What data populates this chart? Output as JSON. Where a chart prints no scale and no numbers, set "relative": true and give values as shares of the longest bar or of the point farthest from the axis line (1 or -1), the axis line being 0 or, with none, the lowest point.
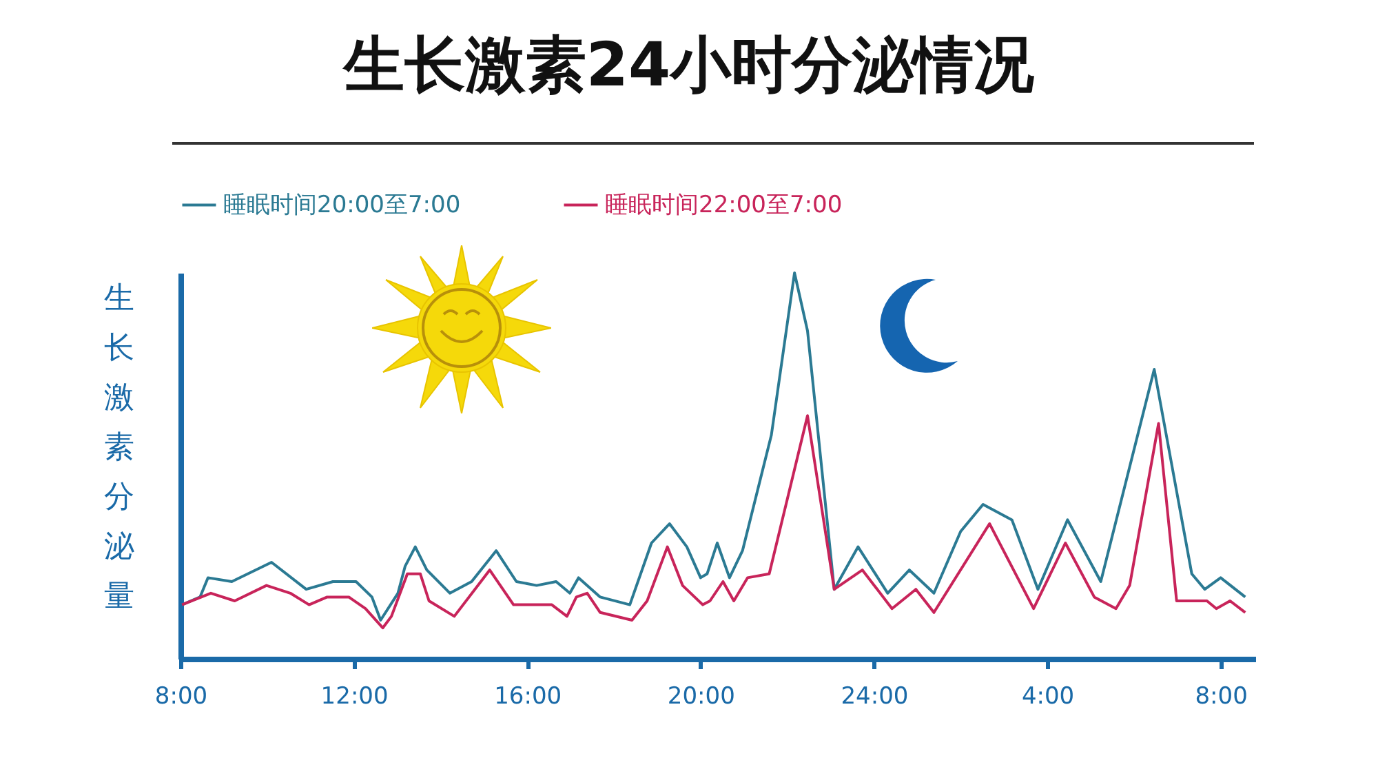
{
  "chart_data": {
    "type": "line",
    "title": "生长激素24小时分泌情况",
    "ylabel": "生长激素分泌量",
    "relative": true,
    "legend": "top",
    "grid": false,
    "marker": "none",
    "line_style": "solid",
    "xlim": [
      "--01-01T08:00",
      "--01-02T08:48"
    ],
    "xticks": [
      {
        "value": "--01-01T08:00",
        "label": "8:00"
      },
      {
        "value": "--01-01T12:00",
        "label": "12:00"
      },
      {
        "value": "--01-01T16:00",
        "label": "16:00"
      },
      {
        "value": "--01-01T20:00",
        "label": "20:00"
      },
      {
        "value": "--01-02T00:00",
        "label": "24:00"
      },
      {
        "value": "--01-02T04:00",
        "label": "4:00"
      },
      {
        "value": "--01-02T08:00",
        "label": "8:00"
      }
    ],
    "series": [
      {
        "name": "睡眠时间20:00至7:00",
        "color": "#2b7a93",
        "x": [
          "--01-01T08:02",
          "--01-01T08:27",
          "--01-01T08:38",
          "--01-01T09:11",
          "--01-01T10:06",
          "--01-01T10:54",
          "--01-01T11:31",
          "--01-01T12:03",
          "--01-01T12:25",
          "--01-01T12:37",
          "--01-01T13:01",
          "--01-01T13:11",
          "--01-01T13:25",
          "--01-01T13:41",
          "--01-01T14:13",
          "--01-01T14:43",
          "--01-01T15:17",
          "--01-01T15:45",
          "--01-01T16:13",
          "--01-01T16:40",
          "--01-01T16:59",
          "--01-01T17:11",
          "--01-01T17:41",
          "--01-01T18:22",
          "--01-01T18:52",
          "--01-01T19:17",
          "--01-01T19:41",
          "--01-01T20:00",
          "--01-01T20:09",
          "--01-01T20:23",
          "--01-01T20:40",
          "--01-01T20:58",
          "--01-01T21:38",
          "--01-01T22:10",
          "--01-01T22:28",
          "--01-01T23:05",
          "--01-01T23:38",
          "--01-02T00:19",
          "--01-02T00:49",
          "--01-02T01:23",
          "--01-02T02:00",
          "--01-02T02:31",
          "--01-02T03:11",
          "--01-02T03:47",
          "--01-02T04:28",
          "--01-02T05:14",
          "--01-02T06:28",
          "--01-02T07:20",
          "--01-02T07:38",
          "--01-02T08:00",
          "--01-02T08:34"
        ],
        "values": [
          0.14,
          0.16,
          0.21,
          0.2,
          0.25,
          0.18,
          0.2,
          0.2,
          0.16,
          0.1,
          0.17,
          0.24,
          0.29,
          0.23,
          0.17,
          0.2,
          0.28,
          0.2,
          0.19,
          0.2,
          0.17,
          0.21,
          0.16,
          0.14,
          0.3,
          0.35,
          0.29,
          0.21,
          0.22,
          0.3,
          0.21,
          0.28,
          0.58,
          1.0,
          0.85,
          0.18,
          0.29,
          0.17,
          0.23,
          0.17,
          0.33,
          0.4,
          0.36,
          0.18,
          0.36,
          0.2,
          0.75,
          0.22,
          0.18,
          0.21,
          0.16
        ]
      },
      {
        "name": "睡眠时间22:00至7:00",
        "color": "#c8245a",
        "x": [
          "--01-01T08:02",
          "--01-01T08:42",
          "--01-01T09:15",
          "--01-01T09:59",
          "--01-01T10:32",
          "--01-01T10:58",
          "--01-01T11:23",
          "--01-01T11:53",
          "--01-01T12:16",
          "--01-01T12:40",
          "--01-01T12:52",
          "--01-01T13:14",
          "--01-01T13:32",
          "--01-01T13:44",
          "--01-01T14:19",
          "--01-01T15:08",
          "--01-01T15:41",
          "--01-01T16:34",
          "--01-01T16:55",
          "--01-01T17:08",
          "--01-01T17:23",
          "--01-01T17:41",
          "--01-01T18:25",
          "--01-01T18:46",
          "--01-01T19:14",
          "--01-01T19:35",
          "--01-01T20:03",
          "--01-01T20:13",
          "--01-01T20:31",
          "--01-01T20:46",
          "--01-01T21:05",
          "--01-01T21:35",
          "--01-01T22:28",
          "--01-01T23:05",
          "--01-01T23:44",
          "--01-02T00:25",
          "--01-02T00:58",
          "--01-02T01:23",
          "--01-02T02:40",
          "--01-02T03:41",
          "--01-02T04:25",
          "--01-02T05:05",
          "--01-02T05:35",
          "--01-02T05:54",
          "--01-02T06:34",
          "--01-02T06:59",
          "--01-02T07:41",
          "--01-02T07:54",
          "--01-02T08:13",
          "--01-02T08:34"
        ],
        "values": [
          0.14,
          0.17,
          0.15,
          0.19,
          0.17,
          0.14,
          0.16,
          0.16,
          0.13,
          0.08,
          0.11,
          0.22,
          0.22,
          0.15,
          0.11,
          0.23,
          0.14,
          0.14,
          0.11,
          0.16,
          0.17,
          0.12,
          0.1,
          0.15,
          0.29,
          0.19,
          0.14,
          0.15,
          0.2,
          0.15,
          0.21,
          0.22,
          0.63,
          0.18,
          0.23,
          0.13,
          0.18,
          0.12,
          0.35,
          0.13,
          0.3,
          0.16,
          0.13,
          0.19,
          0.61,
          0.15,
          0.15,
          0.13,
          0.15,
          0.12
        ]
      }
    ]
  }
}
